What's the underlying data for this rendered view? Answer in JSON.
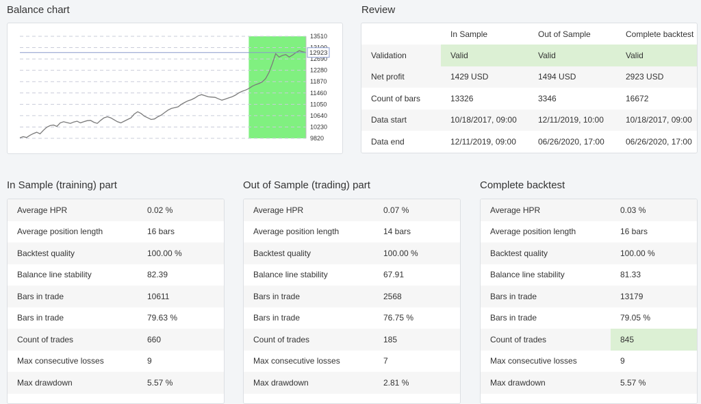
{
  "balance": {
    "title": "Balance chart"
  },
  "chart_data": {
    "type": "line",
    "y_ticks": [
      "13510",
      "13100",
      "12690",
      "12280",
      "11870",
      "11460",
      "11050",
      "10640",
      "10230",
      "9820"
    ],
    "ylim": [
      9820,
      13510
    ],
    "current_value_label": "12923",
    "current_value": 12923,
    "oos_start_fraction": 0.8,
    "colors": {
      "line": "#7a7a7a",
      "oos_band": "#80f080",
      "marker_line": "#8899cc"
    },
    "series": [
      {
        "values": [
          9840,
          9880,
          9850,
          9930,
          9990,
          10040,
          9980,
          10110,
          10220,
          10280,
          10300,
          10250,
          10380,
          10420,
          10390,
          10360,
          10410,
          10440,
          10380,
          10420,
          10460,
          10470,
          10400,
          10360,
          10470,
          10560,
          10600,
          10560,
          10490,
          10420,
          10380,
          10440,
          10500,
          10560,
          10700,
          10780,
          10720,
          10620,
          10560,
          10500,
          10520,
          10600,
          10660,
          10750,
          10840,
          10900,
          10930,
          10960,
          11050,
          11120,
          11180,
          11220,
          11280,
          11360,
          11400,
          11360,
          11320,
          11310,
          11300,
          11250,
          11200,
          11240,
          11280,
          11320,
          11380,
          11460,
          11520,
          11560,
          11620,
          11700,
          11760,
          11800,
          11860,
          11980,
          12200,
          12520,
          12880,
          12760,
          12820,
          12850,
          12760,
          12830,
          12920,
          12990,
          12950,
          12923
        ]
      }
    ]
  },
  "review": {
    "title": "Review",
    "columns": [
      "",
      "In Sample",
      "Out of Sample",
      "Complete backtest"
    ],
    "rows": [
      [
        "Validation",
        "Valid",
        "Valid",
        "Valid"
      ],
      [
        "Net profit",
        "1429 USD",
        "1494 USD",
        "2923 USD"
      ],
      [
        "Count of bars",
        "13326",
        "3346",
        "16672"
      ],
      [
        "Data start",
        "10/18/2017, 09:00",
        "12/11/2019, 10:00",
        "10/18/2017, 09:00"
      ],
      [
        "Data end",
        "12/11/2019, 09:00",
        "06/26/2020, 17:00",
        "06/26/2020, 17:00"
      ]
    ]
  },
  "in_sample": {
    "title": "In Sample (training) part",
    "rows": [
      [
        "Average HPR",
        "0.02 %"
      ],
      [
        "Average position length",
        "16 bars"
      ],
      [
        "Backtest quality",
        "100.00 %"
      ],
      [
        "Balance line stability",
        "82.39"
      ],
      [
        "Bars in trade",
        "10611"
      ],
      [
        "Bars in trade",
        "79.63 %"
      ],
      [
        "Count of trades",
        "660"
      ],
      [
        "Max consecutive losses",
        "9"
      ],
      [
        "Max drawdown",
        "5.57 %"
      ]
    ]
  },
  "out_sample": {
    "title": "Out of Sample (trading) part",
    "rows": [
      [
        "Average HPR",
        "0.07 %"
      ],
      [
        "Average position length",
        "14 bars"
      ],
      [
        "Backtest quality",
        "100.00 %"
      ],
      [
        "Balance line stability",
        "67.91"
      ],
      [
        "Bars in trade",
        "2568"
      ],
      [
        "Bars in trade",
        "76.75 %"
      ],
      [
        "Count of trades",
        "185"
      ],
      [
        "Max consecutive losses",
        "7"
      ],
      [
        "Max drawdown",
        "2.81 %"
      ]
    ]
  },
  "complete": {
    "title": "Complete backtest",
    "rows": [
      [
        "Average HPR",
        "0.03 %"
      ],
      [
        "Average position length",
        "16 bars"
      ],
      [
        "Backtest quality",
        "100.00 %"
      ],
      [
        "Balance line stability",
        "81.33"
      ],
      [
        "Bars in trade",
        "13179"
      ],
      [
        "Bars in trade",
        "79.05 %"
      ],
      [
        "Count of trades",
        "845"
      ],
      [
        "Max consecutive losses",
        "9"
      ],
      [
        "Max drawdown",
        "5.57 %"
      ]
    ]
  }
}
